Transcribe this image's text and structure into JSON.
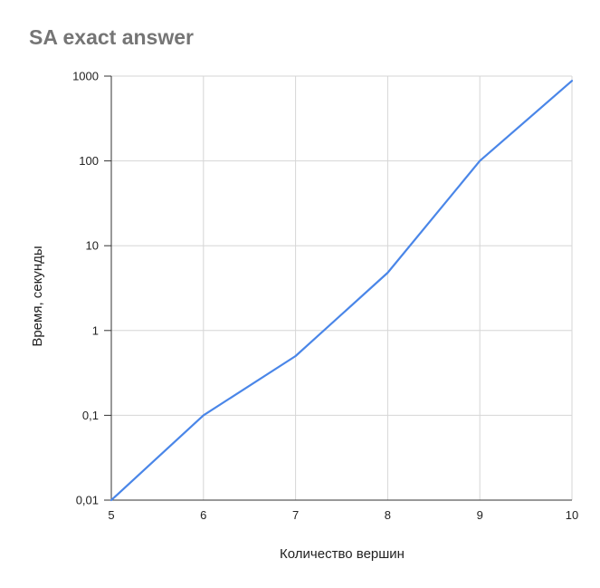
{
  "chart_data": {
    "type": "line",
    "title": "SA exact answer",
    "xlabel": "Количество вершин",
    "ylabel": "Время, секунды",
    "yscale": "log",
    "xlim": [
      5,
      10
    ],
    "ylim": [
      0.01,
      1000
    ],
    "grid": true,
    "x_ticks": [
      "5",
      "6",
      "7",
      "8",
      "9",
      "10"
    ],
    "y_ticks": [
      "0,01",
      "0,1",
      "1",
      "10",
      "100",
      "1000"
    ],
    "series": [
      {
        "x": [
          5,
          6,
          7,
          8,
          9,
          10
        ],
        "y": [
          0.01,
          0.1,
          0.5,
          4.8,
          100,
          880
        ],
        "color": "#4a86e8"
      }
    ]
  }
}
